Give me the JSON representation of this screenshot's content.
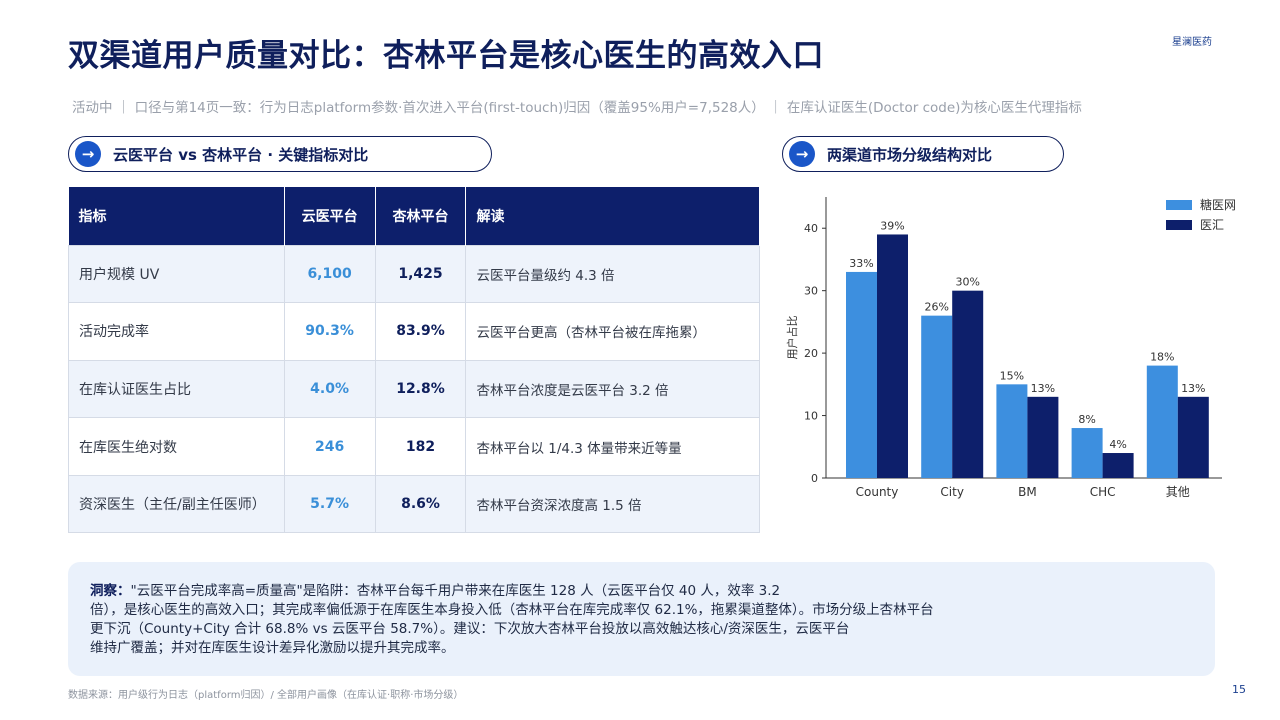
{
  "header": {
    "title": "双渠道用户质量对比：杏林平台是核心医生的高效入口",
    "brand": "星澜医药",
    "subtitle": "活动中 ｜ 口径与第14页一致：行为日志platform参数·首次进入平台(first-touch)归因（覆盖95%用户=7,528人） ｜ 在库认证医生(Doctor code)为核心医生代理指标"
  },
  "left_section": {
    "arrow": "→",
    "title": "云医平台 vs 杏林平台 · 关键指标对比"
  },
  "right_section": {
    "arrow": "→",
    "title": "两渠道市场分级结构对比"
  },
  "table": {
    "headers": [
      "指标",
      "云医平台",
      "杏林平台",
      "解读"
    ],
    "rows": [
      [
        "用户规模 UV",
        "6,100",
        "1,425",
        "云医平台量级约 4.3 倍"
      ],
      [
        "活动完成率",
        "90.3%",
        "83.9%",
        "云医平台更高（杏林平台被在库拖累）"
      ],
      [
        "在库认证医生占比",
        "4.0%",
        "12.8%",
        "杏林平台浓度是云医平台 3.2 倍"
      ],
      [
        "在库医生绝对数",
        "246",
        "182",
        "杏林平台以 1/4.3 体量带来近等量"
      ],
      [
        "资深医生（主任/副主任医师）",
        "5.7%",
        "8.6%",
        "杏林平台资深浓度高 1.5 倍"
      ]
    ]
  },
  "chart_data": {
    "type": "bar",
    "categories": [
      "County",
      "City",
      "BM",
      "CHC",
      "其他"
    ],
    "series": [
      {
        "name": "糖医网",
        "values": [
          33,
          26,
          15,
          8,
          18
        ],
        "color": "#3d8fdf"
      },
      {
        "name": "医汇",
        "values": [
          39,
          30,
          13,
          4,
          13
        ],
        "color": "#0d1f6b"
      }
    ],
    "ylabel": "用户占比",
    "ylim": [
      0,
      45
    ],
    "yticks": [
      0,
      10,
      20,
      30,
      40
    ],
    "value_suffix": "%",
    "legend": "top-right",
    "grid": false
  },
  "insight": {
    "label": "洞察：",
    "lines": [
      "\"云医平台完成率高=质量高\"是陷阱：杏林平台每千用户带来在库医生 128 人（云医平台仅 40 人，效率 3.2",
      "倍），是核心医生的高效入口；其完成率偏低源于在库医生本身投入低（杏林平台在库完成率仅 62.1%，拖累渠道整体）。市场分级上杏林平台",
      "更下沉（County+City 合计 68.8% vs 云医平台 58.7%）。建议：下次放大杏林平台投放以高效触达核心/资深医生，云医平台",
      "维持广覆盖；并对在库医生设计差异化激励以提升其完成率。"
    ]
  },
  "footer": {
    "source": "数据来源：用户级行为日志（platform归因）/ 全部用户画像（在库认证·职称·市场分级）",
    "page": "15"
  }
}
